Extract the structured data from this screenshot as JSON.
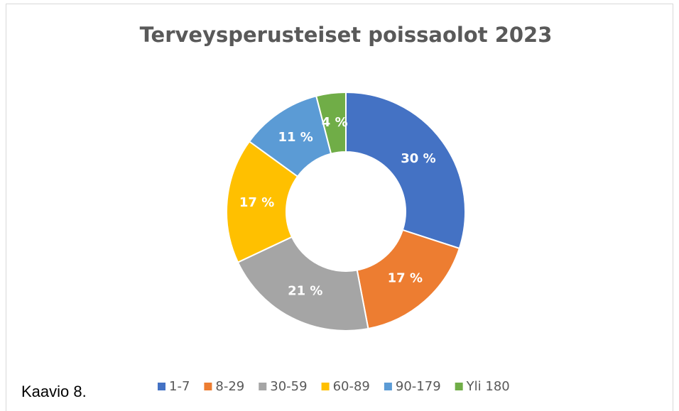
{
  "caption": "Kaavio 8.",
  "chart_data": {
    "type": "donut",
    "title": "Terveysperusteiset poissaolot 2023",
    "categories": [
      "1-7",
      "8-29",
      "30-59",
      "60-89",
      "90-179",
      "Yli 180"
    ],
    "values": [
      30,
      17,
      21,
      17,
      11,
      4
    ],
    "value_labels": [
      "30 %",
      "17 %",
      "21 %",
      "17 %",
      "11 %",
      "4 %"
    ],
    "colors": [
      "#4472c4",
      "#ed7d31",
      "#a5a5a5",
      "#ffc000",
      "#5b9bd5",
      "#70ad47"
    ],
    "legend": "bottom"
  }
}
